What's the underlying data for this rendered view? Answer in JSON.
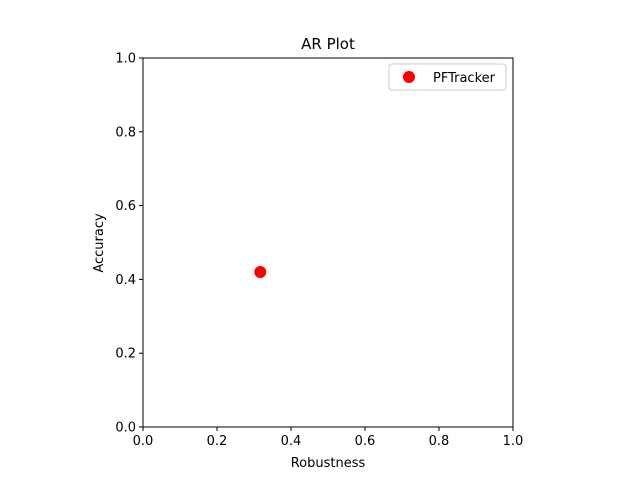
{
  "chart_data": {
    "type": "scatter",
    "title": "AR Plot",
    "xlabel": "Robustness",
    "ylabel": "Accuracy",
    "xlim": [
      0,
      1
    ],
    "ylim": [
      0,
      1
    ],
    "xticks": [
      "0.0",
      "0.2",
      "0.4",
      "0.6",
      "0.8",
      "1.0"
    ],
    "yticks": [
      "0.0",
      "0.2",
      "0.4",
      "0.6",
      "0.8",
      "1.0"
    ],
    "grid": false,
    "legend_position": "top-right",
    "series": [
      {
        "name": "PFTracker",
        "color": "#ff0000",
        "marker": "circle",
        "points": [
          {
            "x": 0.317,
            "y": 0.42
          }
        ]
      }
    ]
  }
}
